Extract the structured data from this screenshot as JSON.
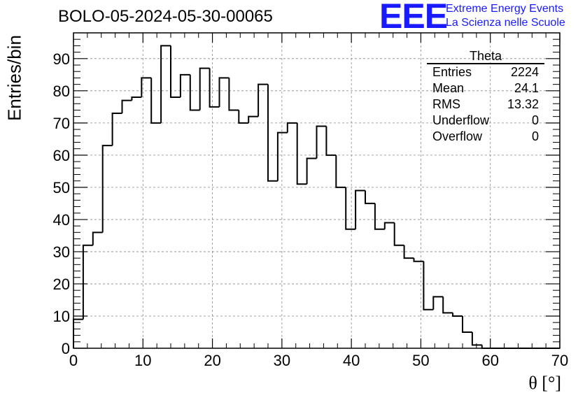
{
  "title": "BOLO-05-2024-05-30-00065",
  "logo": {
    "letters": "EEE",
    "line1": "Extreme Energy Events",
    "line2": "La Scienza nelle Scuole",
    "color": "#1a1aff"
  },
  "stats": {
    "title": "Theta",
    "rows": [
      {
        "label": "Entries",
        "value": "2224"
      },
      {
        "label": "Mean",
        "value": "24.1"
      },
      {
        "label": "RMS",
        "value": "13.32"
      },
      {
        "label": "Underflow",
        "value": "0"
      },
      {
        "label": "Overflow",
        "value": "0"
      }
    ]
  },
  "chart_data": {
    "type": "bar",
    "histogram": true,
    "xlabel": "θ [°]",
    "ylabel": "Entries/bin",
    "xlim": [
      0,
      70
    ],
    "ylim": [
      0,
      98
    ],
    "grid": true,
    "x_ticks": [
      0,
      10,
      20,
      30,
      40,
      50,
      60,
      70
    ],
    "y_ticks": [
      0,
      10,
      20,
      30,
      40,
      50,
      60,
      70,
      80,
      90
    ],
    "bin_width": 1.4,
    "bin_start": 0,
    "values": [
      9,
      32,
      36,
      63,
      73,
      77,
      78,
      84,
      70,
      94,
      78,
      85,
      74,
      87,
      75,
      84,
      74,
      70,
      72,
      82,
      52,
      67,
      70,
      51,
      59,
      69,
      60,
      50,
      37,
      49,
      45,
      37,
      39,
      32,
      28,
      27,
      12,
      16,
      11,
      10,
      5,
      1,
      0,
      0,
      0,
      0,
      0,
      0,
      0,
      0
    ],
    "line_color": "#000000"
  }
}
